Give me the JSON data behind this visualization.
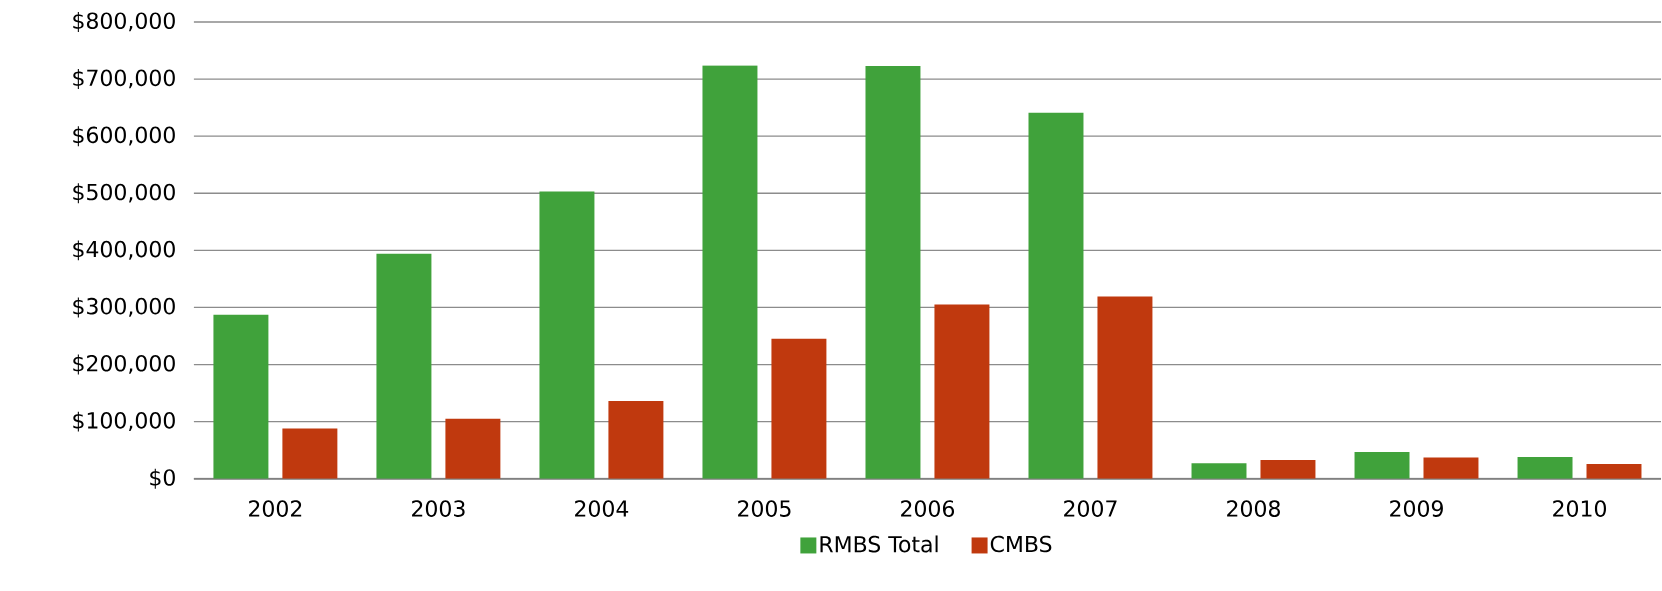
{
  "chart_data": {
    "type": "bar",
    "categories": [
      "2002",
      "2003",
      "2004",
      "2005",
      "2006",
      "2007",
      "2008",
      "2009",
      "2010"
    ],
    "series": [
      {
        "name": "RMBS Total",
        "color": "#40a23b",
        "values": [
          287000,
          394000,
          503000,
          724000,
          723000,
          641000,
          27000,
          47000,
          38000
        ]
      },
      {
        "name": "CMBS",
        "color": "#c0390e",
        "values": [
          88000,
          105000,
          136000,
          245000,
          305000,
          319000,
          33000,
          37000,
          26000
        ]
      }
    ],
    "ylim": [
      0,
      800000
    ],
    "yticks": [
      {
        "value": 0,
        "label": "$0"
      },
      {
        "value": 100000,
        "label": "$100,000"
      },
      {
        "value": 200000,
        "label": "$200,000"
      },
      {
        "value": 300000,
        "label": "$300,000"
      },
      {
        "value": 400000,
        "label": "$400,000"
      },
      {
        "value": 500000,
        "label": "$500,000"
      },
      {
        "value": 600000,
        "label": "$600,000"
      },
      {
        "value": 700000,
        "label": "$700,000"
      },
      {
        "value": 800000,
        "label": "$800,000"
      }
    ],
    "grid": "y",
    "legend": "bottom"
  }
}
